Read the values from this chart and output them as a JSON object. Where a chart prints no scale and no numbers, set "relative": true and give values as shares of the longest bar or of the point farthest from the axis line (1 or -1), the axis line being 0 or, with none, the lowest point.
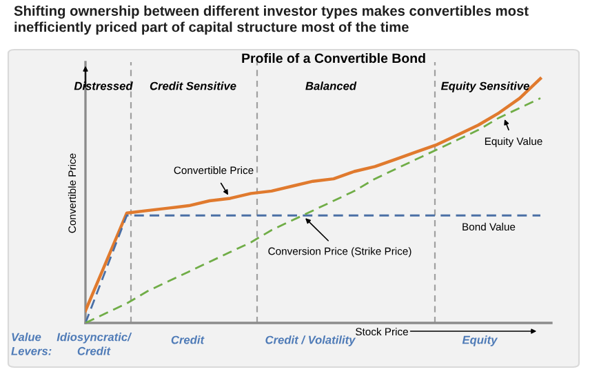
{
  "chart_data": {
    "type": "line",
    "relative": true,
    "title": "Shifting ownership between different investor types makes convertibles most inefficiently priced part of capital structure most of the time",
    "subtitle": "Profile of a Convertible Bond",
    "xlabel": "Stock Price",
    "ylabel": "Convertible Price",
    "categories": [
      null,
      null,
      null,
      null,
      null,
      null,
      null,
      null,
      null,
      null,
      null,
      null,
      null,
      null,
      null,
      null,
      null,
      null,
      null,
      null,
      null,
      null,
      null
    ],
    "series": [
      {
        "name": "Convertible Price",
        "color": "#e07a2e",
        "line_style": "solid",
        "values": [
          0.05,
          0.25,
          0.45,
          0.46,
          0.47,
          0.48,
          0.5,
          0.51,
          0.53,
          0.54,
          0.56,
          0.58,
          0.59,
          0.62,
          0.64,
          0.67,
          0.7,
          0.73,
          0.77,
          0.81,
          0.86,
          0.92,
          1.0
        ]
      },
      {
        "name": "Bond Value",
        "color": "#4a6fa5",
        "line_style": "dashed",
        "values": [
          0,
          0.22,
          0.44,
          0.44,
          0.44,
          0.44,
          0.44,
          0.44,
          0.44,
          0.44,
          0.44,
          0.44,
          0.44,
          0.44,
          0.44,
          0.44,
          0.44,
          0.44,
          0.44,
          0.44,
          0.44,
          0.44,
          0.44
        ]
      },
      {
        "name": "Equity Value",
        "color": "#70ad47",
        "line_style": "dashed",
        "values": [
          0,
          0.04,
          0.08,
          0.13,
          0.17,
          0.21,
          0.25,
          0.29,
          0.33,
          0.38,
          0.42,
          0.46,
          0.5,
          0.54,
          0.59,
          0.63,
          0.67,
          0.71,
          0.75,
          0.79,
          0.84,
          0.88,
          0.92
        ]
      }
    ],
    "annotations": [
      "Distressed",
      "Credit Sensitive",
      "Balanced",
      "Equity Sensitive",
      "Conversion Price (Strike Price)",
      "Value Levers:",
      "Idiosyncratic/ Credit",
      "Credit",
      "Credit / Volatility",
      "Equity"
    ],
    "grid": false
  }
}
